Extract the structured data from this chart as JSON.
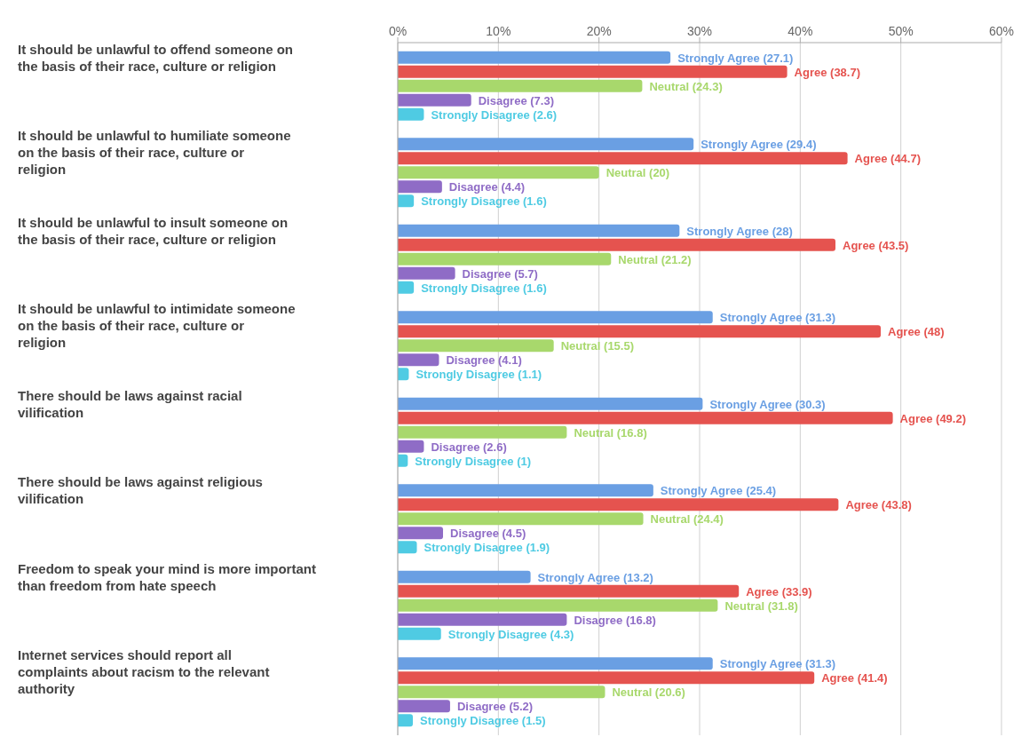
{
  "chart_data": {
    "type": "bar",
    "orientation": "horizontal",
    "categories": [
      "It should be unlawful to offend someone on the basis of their race, culture or religion",
      "It should be unlawful to humiliate someone on the basis of their race, culture or religion",
      "It should be unlawful to insult someone on the basis of their race, culture or religion",
      "It should be unlawful to intimidate someone on the basis of their race, culture or religion",
      "There should be laws against racial vilification",
      "There should be laws against religious vilification",
      "Freedom to speak your mind is more important than freedom from hate speech",
      "Internet services should report all complaints about racism to the relevant authority"
    ],
    "series": [
      {
        "color": "#6a9fe3",
        "values": [
          27.1,
          29.4,
          28,
          31.3,
          30.3,
          25.4,
          13.2,
          31.3
        ],
        "value_labels": [
          "Strongly Agree (27.1)",
          "Strongly Agree (29.4)",
          "Strongly Agree (28)",
          "Strongly Agree (31.3)",
          "Strongly Agree (30.3)",
          "Strongly Agree (25.4)",
          "Strongly Agree (13.2)",
          "Strongly Agree (31.3)"
        ]
      },
      {
        "color": "#e5534f",
        "values": [
          38.7,
          44.7,
          43.5,
          48,
          49.2,
          43.8,
          33.9,
          41.4
        ],
        "value_labels": [
          "Agree (38.7)",
          "Agree (44.7)",
          "Agree (43.5)",
          "Agree (48)",
          "Agree (49.2)",
          "Agree (43.8)",
          "Agree (33.9)",
          "Agree (41.4)"
        ]
      },
      {
        "color": "#a8d86c",
        "values": [
          24.3,
          20,
          21.2,
          15.5,
          16.8,
          24.4,
          31.8,
          20.6
        ],
        "value_labels": [
          "Neutral (24.3)",
          "Neutral (20)",
          "Neutral (21.2)",
          "Neutral (15.5)",
          "Neutral (16.8)",
          "Neutral (24.4)",
          "Neutral (31.8)",
          "Neutral (20.6)"
        ]
      },
      {
        "color": "#8f6cc6",
        "values": [
          7.3,
          4.4,
          5.7,
          4.1,
          2.6,
          4.5,
          16.8,
          5.2
        ],
        "value_labels": [
          "Disagree (7.3)",
          "Disagree (4.4)",
          "Disagree (5.7)",
          "Disagree (4.1)",
          "Disagree (2.6)",
          "Disagree (4.5)",
          "Disagree (16.8)",
          "Disagree (5.2)"
        ]
      },
      {
        "color": "#4fcbe3",
        "values": [
          2.6,
          1.6,
          1.6,
          1.1,
          1,
          1.9,
          4.3,
          1.5
        ],
        "value_labels": [
          "Strongly Disagree (2.6)",
          "Strongly Disagree (1.6)",
          "Strongly Disagree (1.6)",
          "Strongly Disagree (1.1)",
          "Strongly Disagree (1)",
          "Strongly Disagree (1.9)",
          "Strongly Disagree (4.3)",
          "Strongly Disagree (1.5)"
        ]
      }
    ],
    "xlim": [
      0,
      60
    ],
    "xticks": [
      {
        "value": 0,
        "label": "0%"
      },
      {
        "value": 10,
        "label": "10%"
      },
      {
        "value": 20,
        "label": "20%"
      },
      {
        "value": 30,
        "label": "30%"
      },
      {
        "value": 40,
        "label": "40%"
      },
      {
        "value": 50,
        "label": "50%"
      },
      {
        "value": 60,
        "label": "60%"
      }
    ],
    "grid": "x",
    "legend": false
  }
}
